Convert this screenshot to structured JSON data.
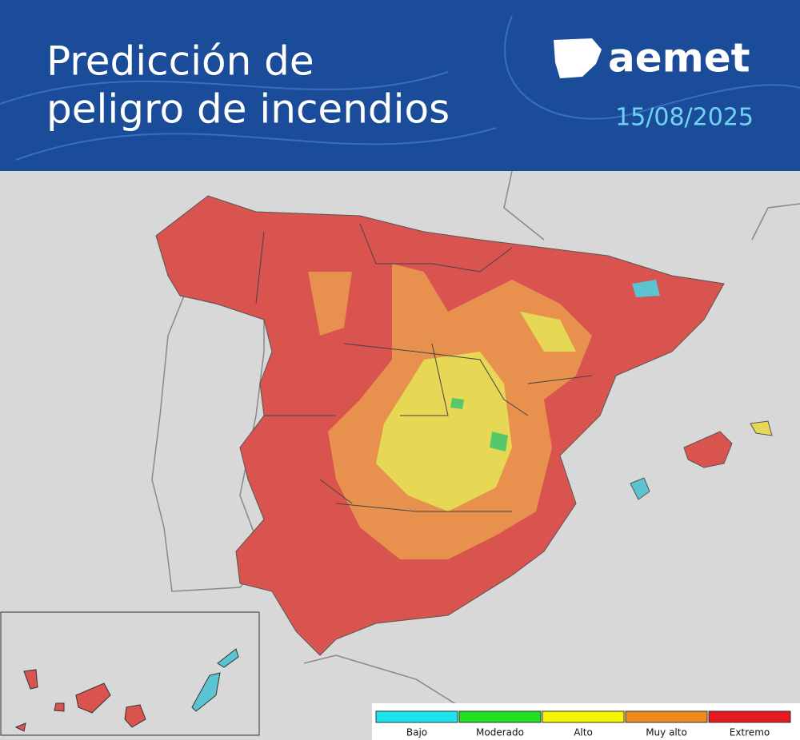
{
  "header": {
    "title_lines": [
      "Predicción de",
      "peligro de incendios"
    ],
    "logo": "aemet",
    "date": "15/08/2025"
  },
  "legend": {
    "items": [
      {
        "label": "Bajo",
        "color": "#1ee3ee"
      },
      {
        "label": "Moderado",
        "color": "#22e022"
      },
      {
        "label": "Alto",
        "color": "#f5f500"
      },
      {
        "label": "Muy alto",
        "color": "#f08a1e"
      },
      {
        "label": "Extremo",
        "color": "#e8191e"
      }
    ]
  }
}
